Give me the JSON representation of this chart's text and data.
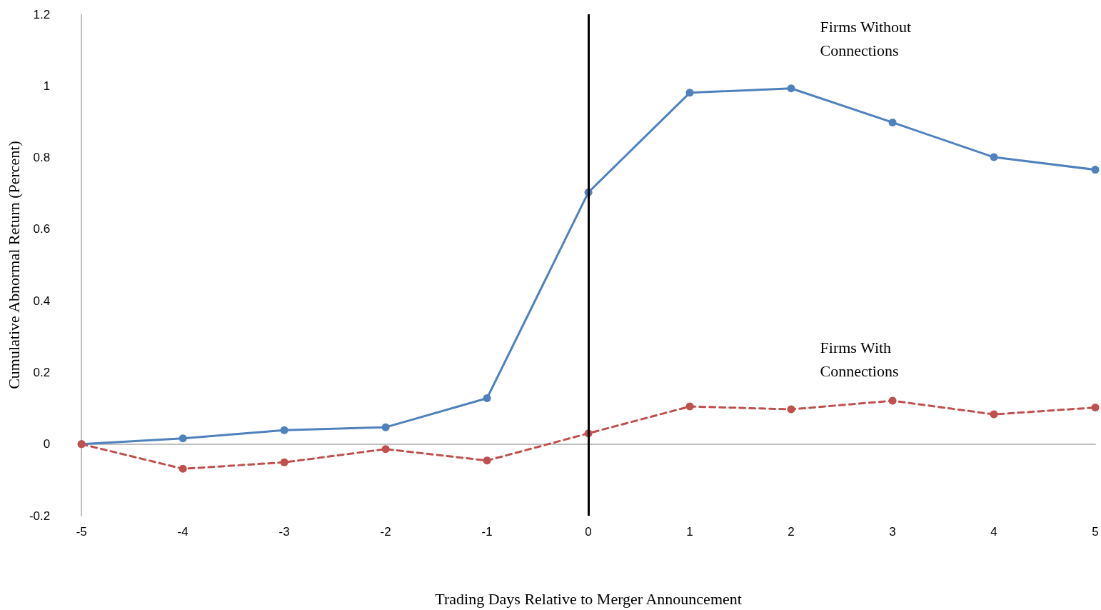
{
  "chart_data": {
    "type": "line",
    "xlabel": "Trading Days Relative to Merger Announcement",
    "ylabel": "Cumulative Abnormal Return (Percent)",
    "x": [
      -5,
      -4,
      -3,
      -2,
      -1,
      0,
      1,
      2,
      3,
      4,
      5
    ],
    "xlim": [
      -5,
      5
    ],
    "xticks": [
      -5,
      -4,
      -3,
      -2,
      -1,
      0,
      1,
      2,
      3,
      4,
      5
    ],
    "ylim": [
      -0.2,
      1.2
    ],
    "yticks": [
      -0.2,
      0,
      0.2,
      0.4,
      0.6,
      0.8,
      1,
      1.2
    ],
    "grid": false,
    "legend": false,
    "marker": "circle",
    "ref_lines": [
      {
        "axis": "x",
        "value": 0,
        "color": "#000000"
      }
    ],
    "series": [
      {
        "name": "Firms Without Connections",
        "color": "#4f81bd",
        "line_style": "solid",
        "values": [
          0,
          0.016,
          0.039,
          0.047,
          0.128,
          0.703,
          0.981,
          0.993,
          0.898,
          0.801,
          0.766
        ]
      },
      {
        "name": "Firms With Connections",
        "color": "#c0504d",
        "line_style": "dashed",
        "values": [
          0,
          -0.069,
          -0.051,
          -0.014,
          -0.046,
          0.03,
          0.105,
          0.097,
          0.121,
          0.083,
          0.102
        ]
      }
    ]
  }
}
